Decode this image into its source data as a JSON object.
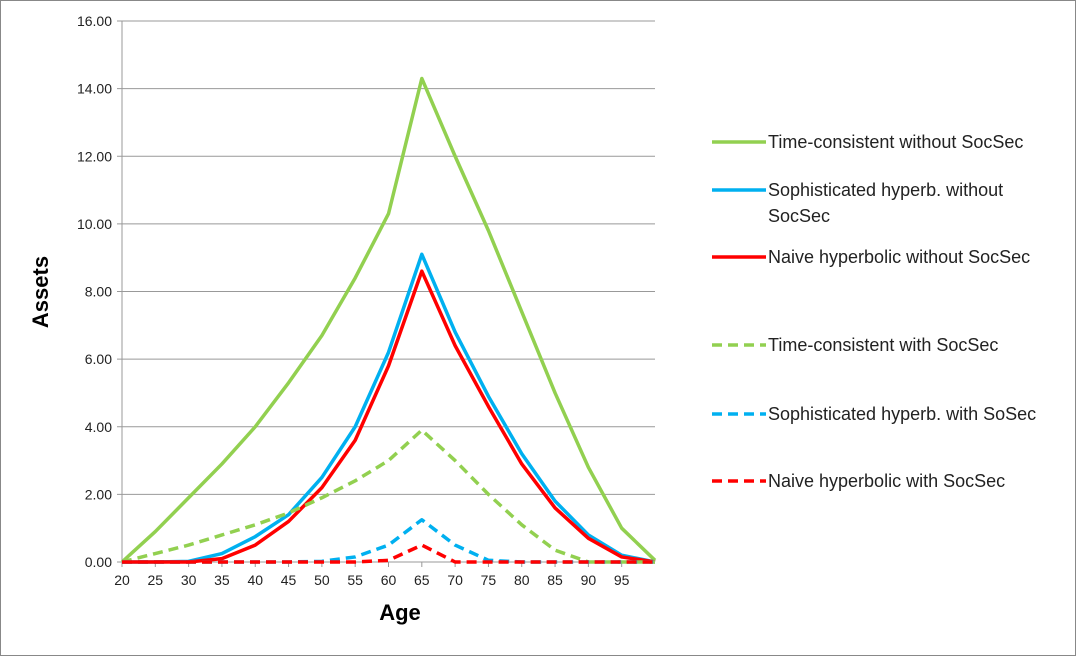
{
  "chart_data": {
    "type": "line",
    "x_label": "Age",
    "y_label": "Assets",
    "x": [
      20,
      25,
      30,
      35,
      40,
      45,
      50,
      55,
      60,
      65,
      70,
      75,
      80,
      85,
      90,
      95,
      100
    ],
    "xlim": [
      20,
      100
    ],
    "xticks": [
      20,
      25,
      30,
      35,
      40,
      45,
      50,
      55,
      60,
      65,
      70,
      75,
      80,
      85,
      90,
      95
    ],
    "ylim": [
      0,
      16
    ],
    "yticks": [
      {
        "value": 0,
        "label": "0.00"
      },
      {
        "value": 2,
        "label": "2.00"
      },
      {
        "value": 4,
        "label": "4.00"
      },
      {
        "value": 6,
        "label": "6.00"
      },
      {
        "value": 8,
        "label": "8.00"
      },
      {
        "value": 10,
        "label": "10.00"
      },
      {
        "value": 12,
        "label": "12.00"
      },
      {
        "value": 14,
        "label": "14.00"
      },
      {
        "value": 16,
        "label": "16.00"
      }
    ],
    "grid": true,
    "legend": "right",
    "series": [
      {
        "name": "Time-consistent without SocSec",
        "color": "#92d050",
        "dashed": false,
        "values": [
          0,
          0.9,
          1.9,
          2.9,
          4.0,
          5.3,
          6.7,
          8.4,
          10.3,
          14.3,
          12.0,
          9.8,
          7.4,
          5.0,
          2.8,
          1.0,
          0.05
        ]
      },
      {
        "name": "Sophisticated hyperb. without SocSec",
        "color": "#00b0f0",
        "dashed": false,
        "values": [
          0,
          0,
          0.02,
          0.25,
          0.75,
          1.4,
          2.5,
          4.0,
          6.2,
          9.1,
          6.8,
          4.9,
          3.2,
          1.8,
          0.8,
          0.2,
          0
        ]
      },
      {
        "name": "Naive hyperbolic without SocSec",
        "color": "#ff0000",
        "dashed": false,
        "values": [
          0,
          0,
          0,
          0.1,
          0.5,
          1.2,
          2.2,
          3.6,
          5.8,
          8.6,
          6.4,
          4.6,
          2.9,
          1.6,
          0.7,
          0.15,
          0
        ]
      },
      {
        "name": "Time-consistent with SocSec",
        "color": "#92d050",
        "dashed": true,
        "values": [
          0,
          0.25,
          0.5,
          0.8,
          1.1,
          1.45,
          1.9,
          2.4,
          3.0,
          3.9,
          3.0,
          2.0,
          1.1,
          0.35,
          0,
          0,
          0
        ]
      },
      {
        "name": "Sophisticated hyperb. with SoSec",
        "color": "#00b0f0",
        "dashed": true,
        "values": [
          0,
          0,
          0,
          0,
          0,
          0,
          0.02,
          0.15,
          0.5,
          1.25,
          0.5,
          0.05,
          0,
          0,
          0,
          0,
          0
        ]
      },
      {
        "name": "Naive hyperbolic with SocSec",
        "color": "#ff0000",
        "dashed": true,
        "values": [
          0,
          0,
          0,
          0,
          0,
          0,
          0,
          0,
          0.05,
          0.5,
          0,
          0,
          0,
          0,
          0,
          0,
          0
        ]
      }
    ]
  }
}
